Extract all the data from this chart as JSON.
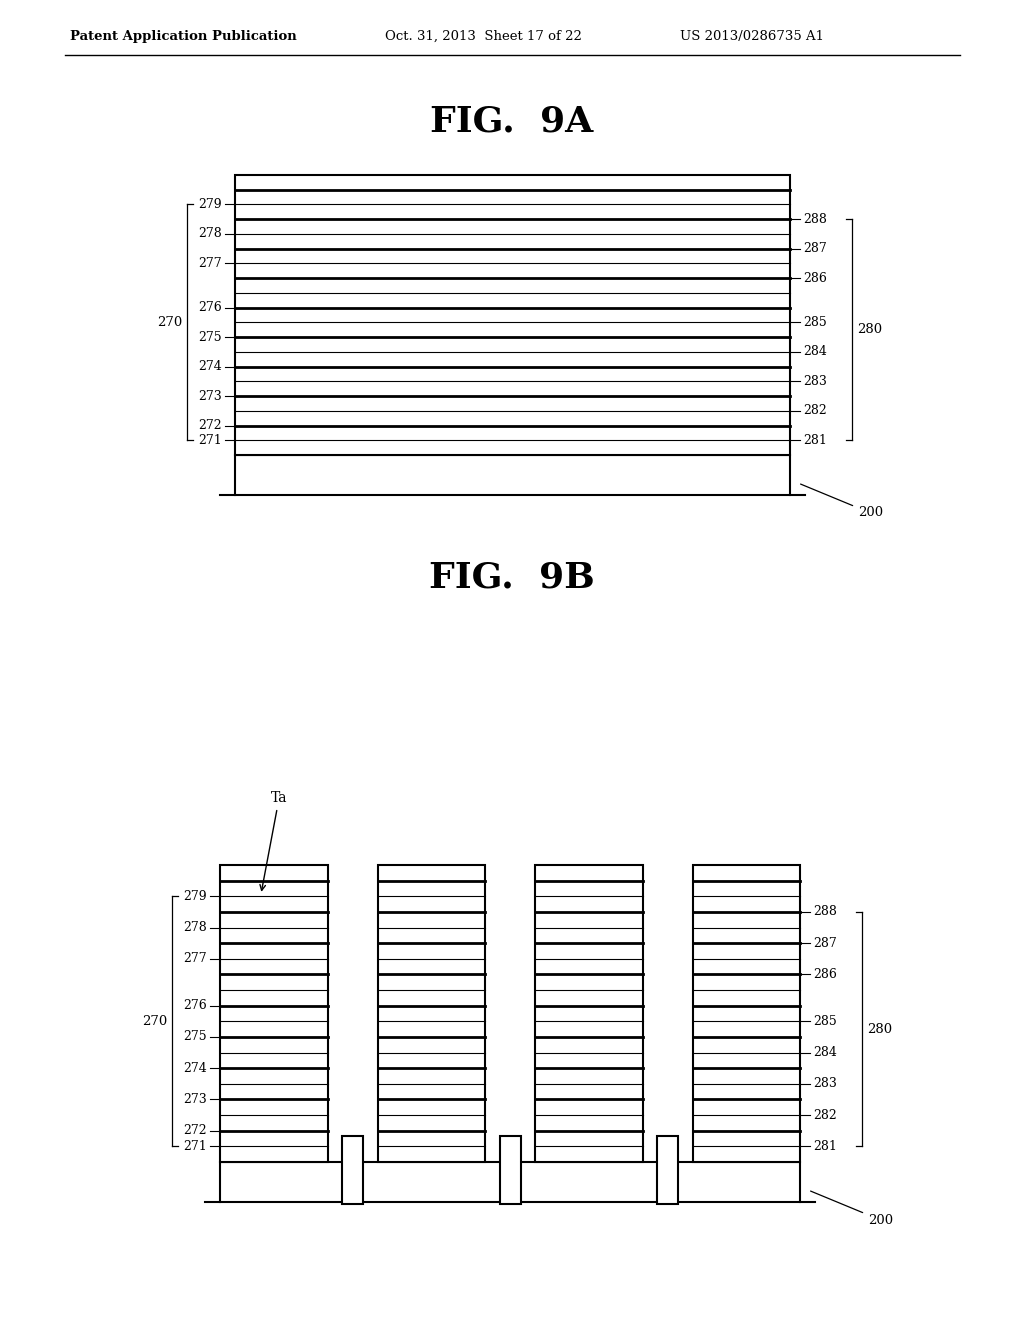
{
  "header_left": "Patent Application Publication",
  "header_mid": "Oct. 31, 2013  Sheet 17 of 22",
  "header_right": "US 2013/0286735 A1",
  "fig_9a_title": "FIG.  9A",
  "fig_9b_title": "FIG.  9B",
  "bg": "#ffffff",
  "lc": "#000000",
  "left_labels": [
    "271",
    "272",
    "273",
    "274",
    "275",
    "276",
    "277",
    "278",
    "279"
  ],
  "right_labels": [
    "281",
    "282",
    "283",
    "284",
    "285",
    "286",
    "287",
    "288"
  ],
  "label_270": "270",
  "label_280": "280",
  "label_200": "200",
  "label_Ta": "Ta",
  "n_layers": 18,
  "left_label_line_indices": [
    0,
    1,
    3,
    5,
    7,
    9,
    12,
    14,
    16
  ],
  "right_label_line_indices": [
    0,
    2,
    4,
    6,
    8,
    11,
    13,
    15
  ]
}
